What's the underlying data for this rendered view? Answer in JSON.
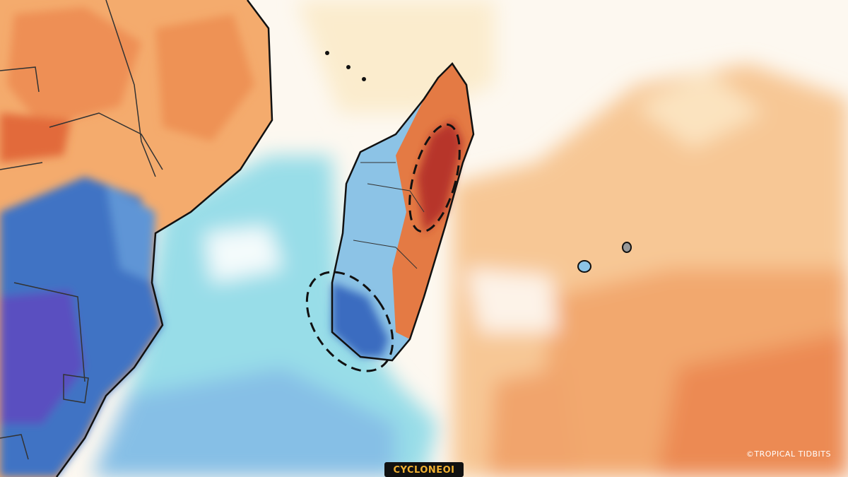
{
  "labels": {
    "brand": "CYCLONEOI",
    "credit": "©TROPICAL TIDBITS"
  }
}
